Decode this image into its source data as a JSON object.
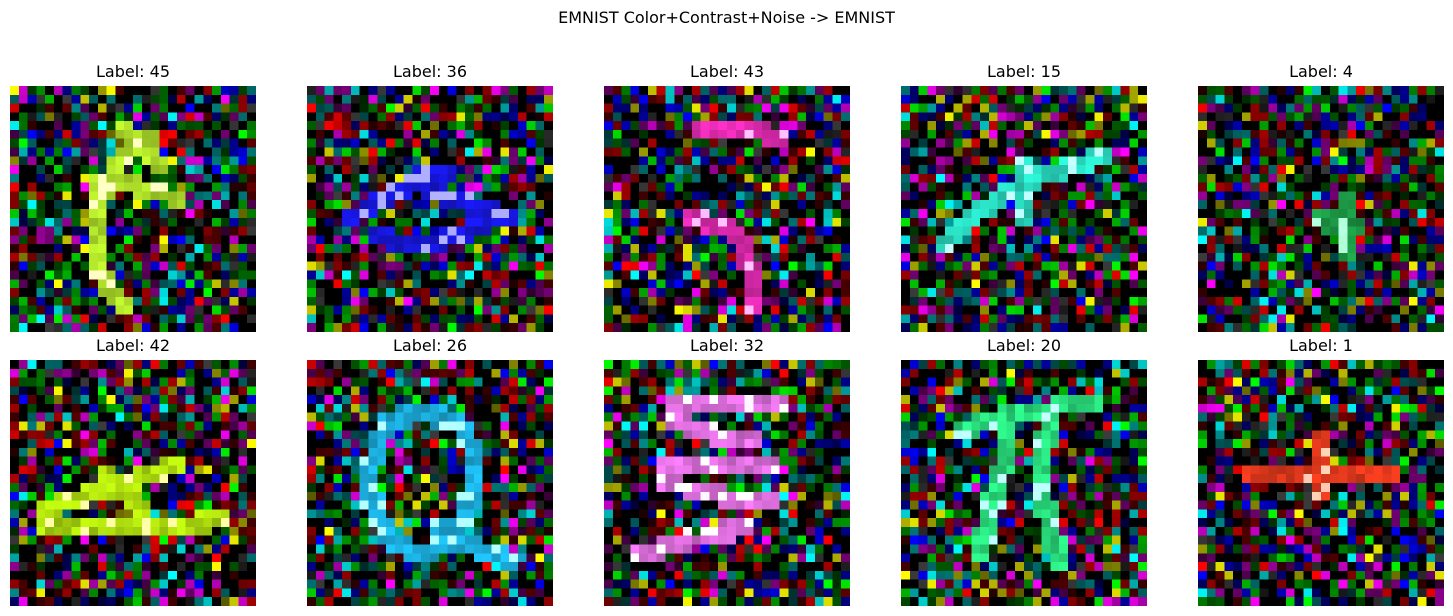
{
  "figure": {
    "title": "EMNIST Color+Contrast+Noise -> EMNIST"
  },
  "panels": [
    {
      "label": "Label: 45",
      "glyph_color": "#c8ff30"
    },
    {
      "label": "Label: 36",
      "glyph_color": "#1a1aff"
    },
    {
      "label": "Label: 43",
      "glyph_color": "#ff30c8"
    },
    {
      "label": "Label: 15",
      "glyph_color": "#30ffe0"
    },
    {
      "label": "Label: 4",
      "glyph_color": "#20b050"
    },
    {
      "label": "Label: 42",
      "glyph_color": "#c8ff10"
    },
    {
      "label": "Label: 26",
      "glyph_color": "#20c8ff"
    },
    {
      "label": "Label: 32",
      "glyph_color": "#ff80ff"
    },
    {
      "label": "Label: 20",
      "glyph_color": "#30ff90"
    },
    {
      "label": "Label: 1",
      "glyph_color": "#ff4020"
    }
  ]
}
